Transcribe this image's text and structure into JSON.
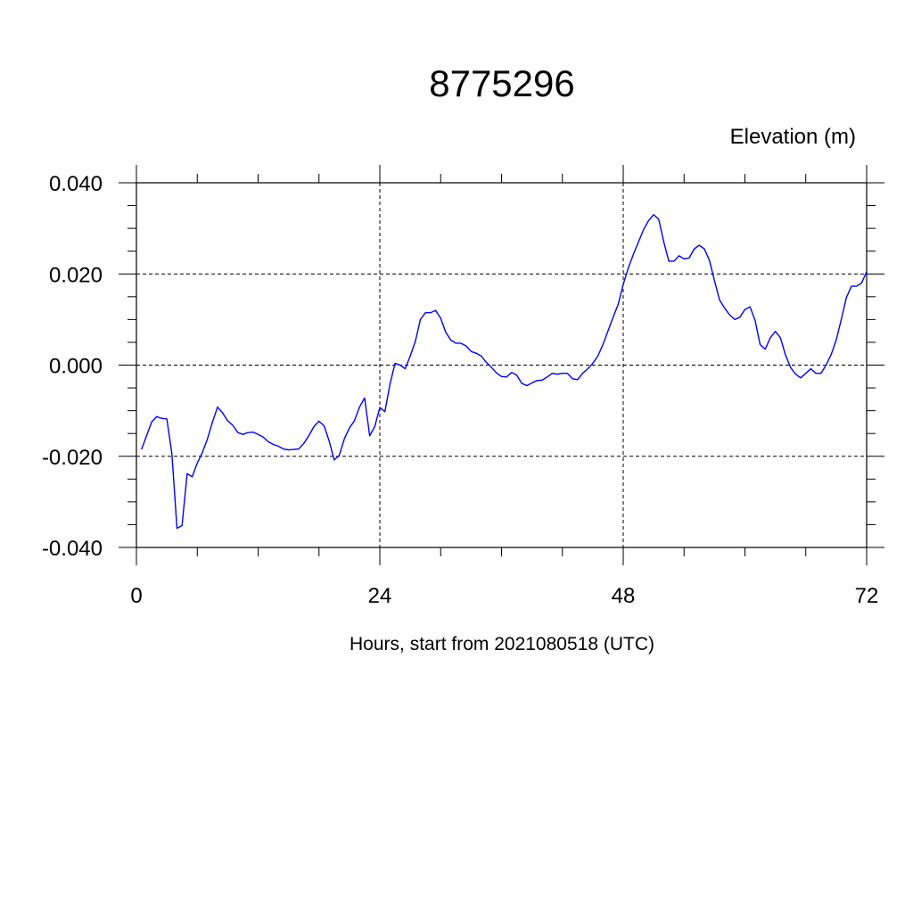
{
  "chart_data": {
    "type": "line",
    "title": "8775296",
    "ylabel": "Elevation (m)",
    "xlabel": "Hours, start from 2021080518 (UTC)",
    "xlim": [
      0,
      72
    ],
    "ylim": [
      -0.04,
      0.04
    ],
    "xticks": [
      0,
      24,
      48,
      72
    ],
    "xtick_labels": [
      "0",
      "24",
      "48",
      "72"
    ],
    "yticks": [
      0.04,
      0.02,
      0.0,
      -0.02,
      -0.04
    ],
    "ytick_labels": [
      "0.040",
      "0.020",
      "0.000",
      "-0.020",
      "-0.040"
    ],
    "grid": "dashed at major ticks",
    "line_color": "#0000ff",
    "series": [
      {
        "x": [
          0.5,
          1,
          1.5,
          2,
          2.5,
          3,
          3.5,
          4,
          4.5,
          5,
          5.5,
          6,
          6.5,
          7,
          7.5,
          8,
          8.5,
          9,
          9.5,
          10,
          10.5,
          11,
          11.5,
          12,
          12.5,
          13,
          13.5,
          14,
          14.5,
          15,
          15.5,
          16,
          16.5,
          17,
          17.5,
          18,
          18.5,
          19,
          19.5,
          20,
          20.5,
          21,
          21.5,
          22,
          22.5,
          23,
          23.5,
          24,
          24.5,
          25,
          25.5,
          26,
          26.5,
          27,
          27.5,
          28,
          28.5,
          29,
          29.5,
          30,
          30.5,
          31,
          31.5,
          32,
          32.5,
          33,
          33.5,
          34,
          34.5,
          35,
          35.5,
          36,
          36.5,
          37,
          37.5,
          38,
          38.5,
          39,
          39.5,
          40,
          40.5,
          41,
          41.5,
          42,
          42.5,
          43,
          43.5,
          44,
          44.5,
          45,
          45.5,
          46,
          46.5,
          47,
          47.5,
          48,
          48.5,
          49,
          49.5,
          50,
          50.5,
          51,
          51.5,
          52,
          52.5,
          53,
          53.5,
          54,
          54.5,
          55,
          55.5,
          56,
          56.5,
          57,
          57.5,
          58,
          58.5,
          59,
          59.5,
          60,
          60.5,
          61,
          61.5,
          62,
          62.5,
          63,
          63.5,
          64,
          64.5,
          65,
          65.5,
          66,
          66.5,
          67,
          67.5,
          68,
          68.5,
          69,
          69.5,
          70,
          70.5,
          71,
          71.5,
          72
        ],
        "y": [
          -0.0185,
          -0.0155,
          -0.0125,
          -0.0113,
          -0.0117,
          -0.0118,
          -0.0195,
          -0.0358,
          -0.0352,
          -0.0238,
          -0.0245,
          -0.0215,
          -0.0192,
          -0.0162,
          -0.0125,
          -0.0092,
          -0.0105,
          -0.0122,
          -0.0132,
          -0.0148,
          -0.0152,
          -0.0148,
          -0.0147,
          -0.0152,
          -0.0158,
          -0.0168,
          -0.0174,
          -0.0178,
          -0.0184,
          -0.0186,
          -0.0185,
          -0.0184,
          -0.0172,
          -0.0155,
          -0.0135,
          -0.0123,
          -0.0133,
          -0.0166,
          -0.0208,
          -0.0198,
          -0.0162,
          -0.0138,
          -0.0122,
          -0.0092,
          -0.0072,
          -0.0155,
          -0.0135,
          -0.0093,
          -0.0102,
          -0.0042,
          0.0004,
          0.0,
          -0.0008,
          0.002,
          0.0052,
          0.01,
          0.0115,
          0.0115,
          0.012,
          0.0103,
          0.0072,
          0.0055,
          0.0048,
          0.0048,
          0.0042,
          0.003,
          0.0026,
          0.002,
          0.0006,
          -0.0005,
          -0.0017,
          -0.0025,
          -0.0026,
          -0.0016,
          -0.0022,
          -0.004,
          -0.0045,
          -0.0039,
          -0.0034,
          -0.0033,
          -0.0026,
          -0.0018,
          -0.002,
          -0.0018,
          -0.0018,
          -0.003,
          -0.0032,
          -0.0018,
          -0.0008,
          0.0004,
          0.002,
          0.0045,
          0.0075,
          0.0105,
          0.0133,
          0.0177,
          0.0213,
          0.0243,
          0.027,
          0.0297,
          0.0317,
          0.033,
          0.032,
          0.027,
          0.0228,
          0.0228,
          0.024,
          0.0233,
          0.0235,
          0.0255,
          0.0263,
          0.0255,
          0.023,
          0.0185,
          0.0143,
          0.0125,
          0.011,
          0.01,
          0.0105,
          0.0122,
          0.0128,
          0.0098,
          0.0045,
          0.0035,
          0.006,
          0.0074,
          0.006,
          0.0022,
          -0.0005,
          -0.002,
          -0.0028,
          -0.0018,
          -0.0008,
          -0.0018,
          -0.0018,
          0.0,
          0.0023,
          0.0055,
          0.01,
          0.0148,
          0.0173,
          0.0173,
          0.018,
          0.0205
        ]
      }
    ]
  }
}
